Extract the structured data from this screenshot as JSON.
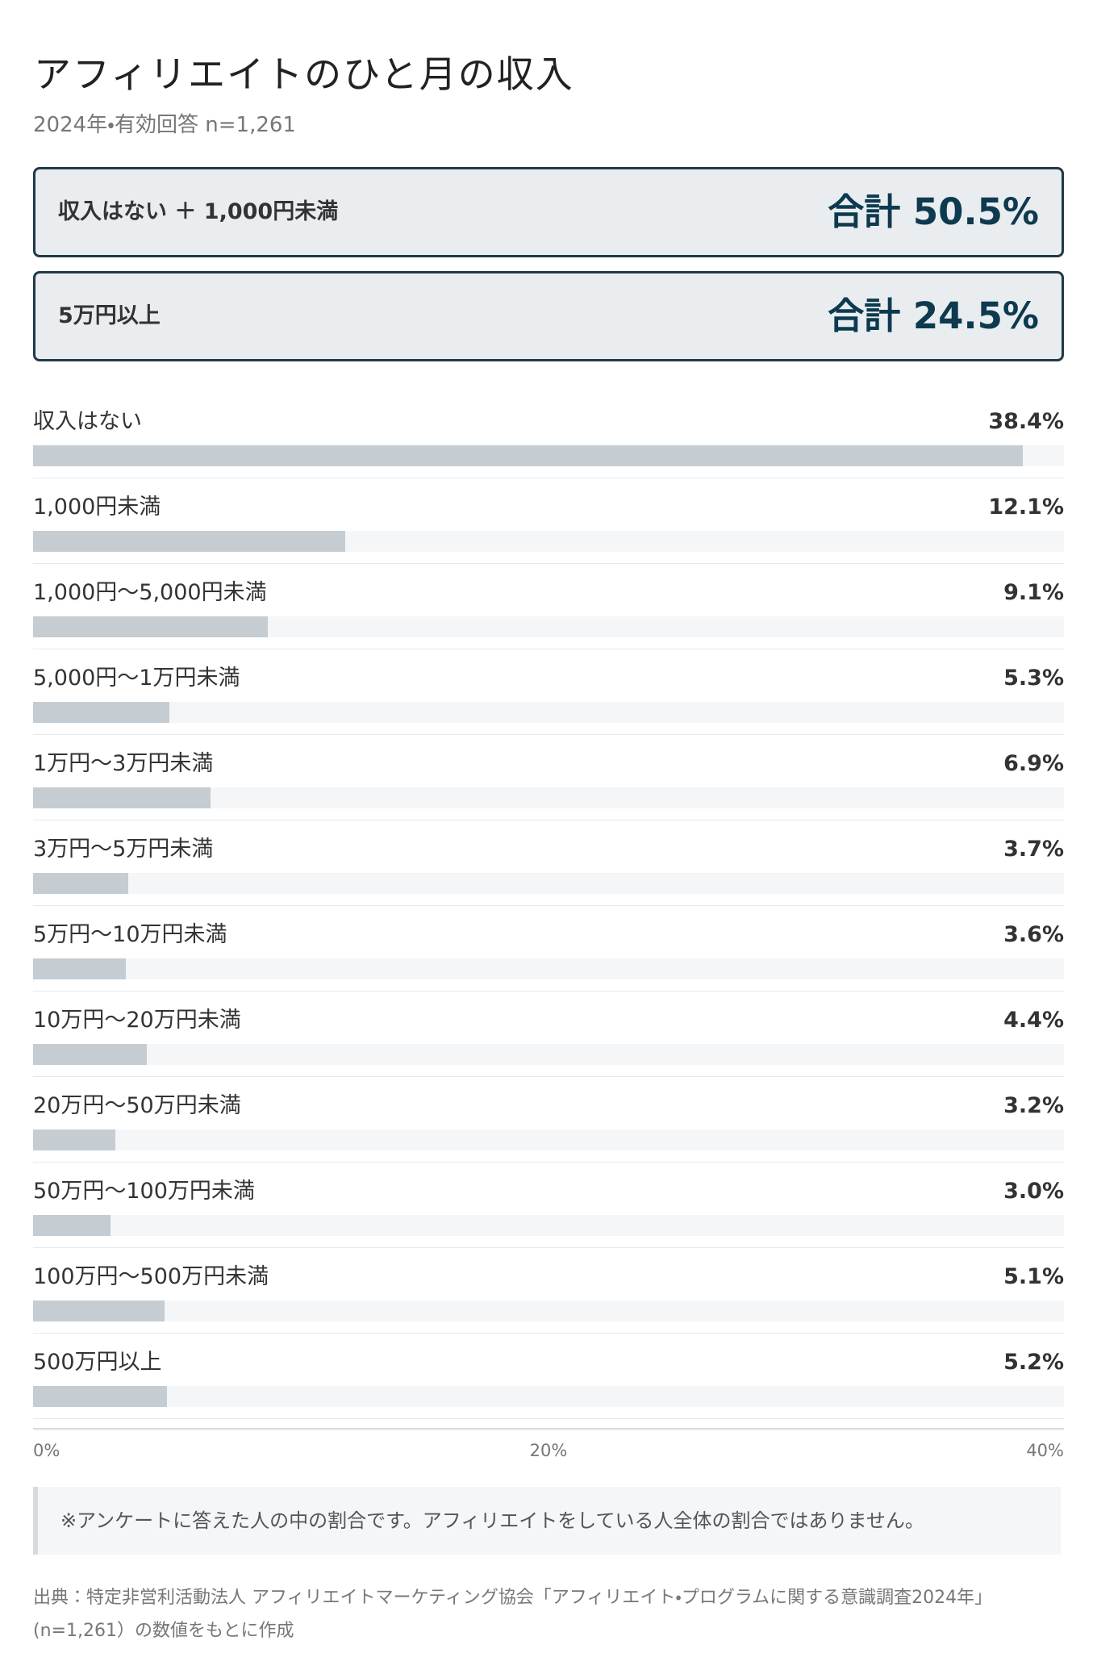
{
  "chart_data": {
    "type": "hbar",
    "title": "アフィリエイトのひと月の収入",
    "subtitle": "2024年・有効回答 n=1,261",
    "summaries": [
      {
        "label": "収入はない ＋ 1,000円未満",
        "total": "合計 50.5%"
      },
      {
        "label": "5万円以上",
        "total": "合計 24.5%"
      }
    ],
    "categories": [
      "収入はない",
      "1,000円未満",
      "1,000円〜5,000円未満",
      "5,000円〜1万円未満",
      "1万円〜3万円未満",
      "3万円〜5万円未満",
      "5万円〜10万円未満",
      "10万円〜20万円未満",
      "20万円〜50万円未満",
      "50万円〜100万円未満",
      "100万円〜500万円未満",
      "500万円以上"
    ],
    "values": [
      38.4,
      12.1,
      9.1,
      5.3,
      6.9,
      3.7,
      3.6,
      4.4,
      3.2,
      3.0,
      5.1,
      5.2
    ],
    "value_labels": [
      "38.4%",
      "12.1%",
      "9.1%",
      "5.3%",
      "6.9%",
      "3.7%",
      "3.6%",
      "4.4%",
      "3.2%",
      "3.0%",
      "5.1%",
      "5.2%"
    ],
    "color": "#c5cdd3",
    "xlim": [
      0,
      40
    ],
    "xticks": [
      {
        "value": 0,
        "label": "0%"
      },
      {
        "value": 20,
        "label": "20%"
      },
      {
        "value": 40,
        "label": "40%"
      }
    ],
    "note": "※アンケートに答えた人の中の割合です。アフィリエイトをしている人全体の割合ではありません。",
    "source": "出典：特定非営利活動法人 アフィリエイトマーケティング協会「アフィリエイト・プログラムに関する意識調査2024年」(n=1,261）の数値をもとに作成"
  }
}
